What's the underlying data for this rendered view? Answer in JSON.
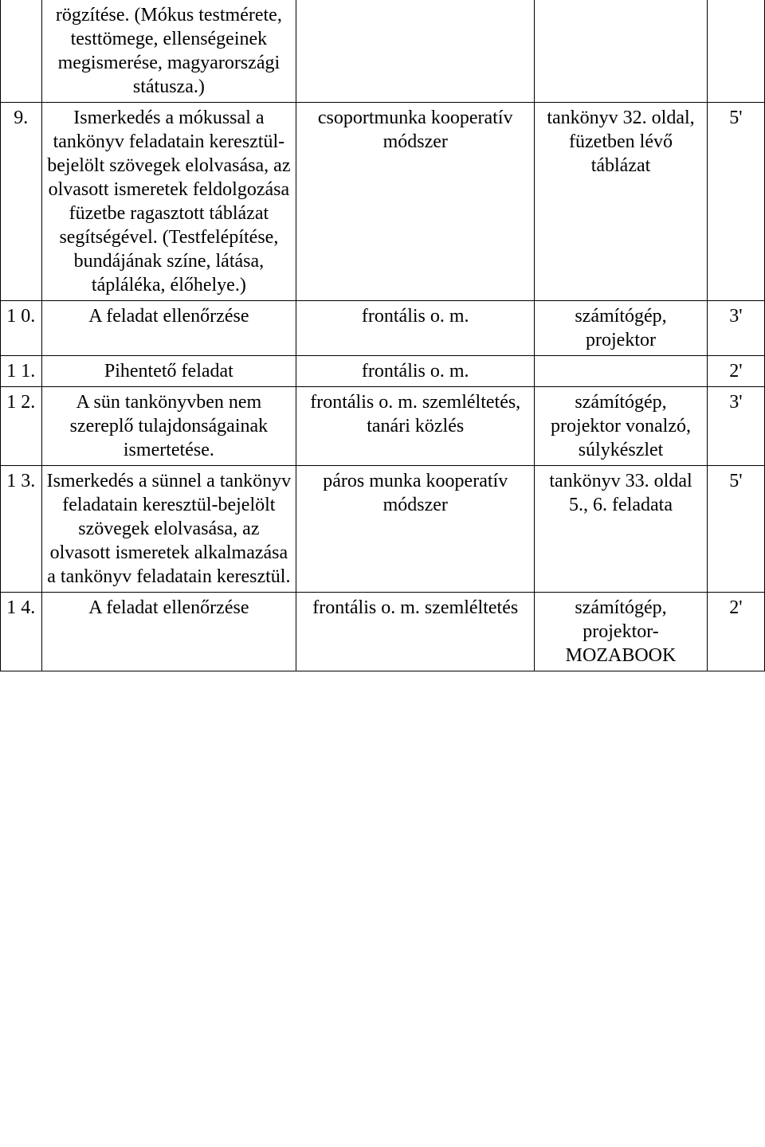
{
  "table": {
    "columns": {
      "num_width": 50,
      "desc_width": 310,
      "method_width": 290,
      "tool_width": 210,
      "time_width": 70
    },
    "font_size": 24,
    "border_color": "#000000",
    "text_color": "#000000",
    "background_color": "#ffffff",
    "rows": [
      {
        "num": "",
        "desc": "rögzítése. (Mókus testmérete, testtömege, ellenségeinek megismerése, magyarországi státusza.)",
        "method": "",
        "tool": "",
        "time": "",
        "no_top_border": true
      },
      {
        "num": "9.",
        "desc": "Ismerkedés a mókussal a tankönyv feladatain keresztül-bejelölt szövegek elolvasása, az olvasott ismeretek feldolgozása füzetbe ragasztott táblázat segítségével. (Testfelépítése, bundájának színe, látása, tápláléka, élőhelye.)",
        "method": "csoportmunka kooperatív módszer",
        "tool": "tankönyv 32. oldal, füzetben lévő táblázat",
        "time": "5'"
      },
      {
        "num": "1 0.",
        "desc": "A feladat ellenőrzése",
        "method": "frontális o. m.",
        "tool": "számítógép, projektor",
        "time": "3'"
      },
      {
        "num": "1 1.",
        "desc": "Pihentető feladat",
        "method": "frontális o. m.",
        "tool": "",
        "time": "2'"
      },
      {
        "num": "1 2.",
        "desc": "A sün tankönyvben nem szereplő tulajdonságainak ismertetése.",
        "method": "frontális o. m. szemléltetés, tanári közlés",
        "tool": "számítógép, projektor vonalzó, súlykészlet",
        "time": "3'"
      },
      {
        "num": "1 3.",
        "desc": "Ismerkedés a sünnel a tankönyv feladatain keresztül-bejelölt szövegek elolvasása, az olvasott ismeretek alkalmazása a tankönyv feladatain keresztül.",
        "method": "páros munka kooperatív módszer",
        "tool": "tankönyv 33. oldal 5., 6. feladata",
        "time": "5'"
      },
      {
        "num": "1 4.",
        "desc": "A feladat ellenőrzése",
        "method": "frontális o. m. szemléltetés",
        "tool": "számítógép, projektor-MOZABOOK",
        "time": "2'"
      }
    ]
  }
}
